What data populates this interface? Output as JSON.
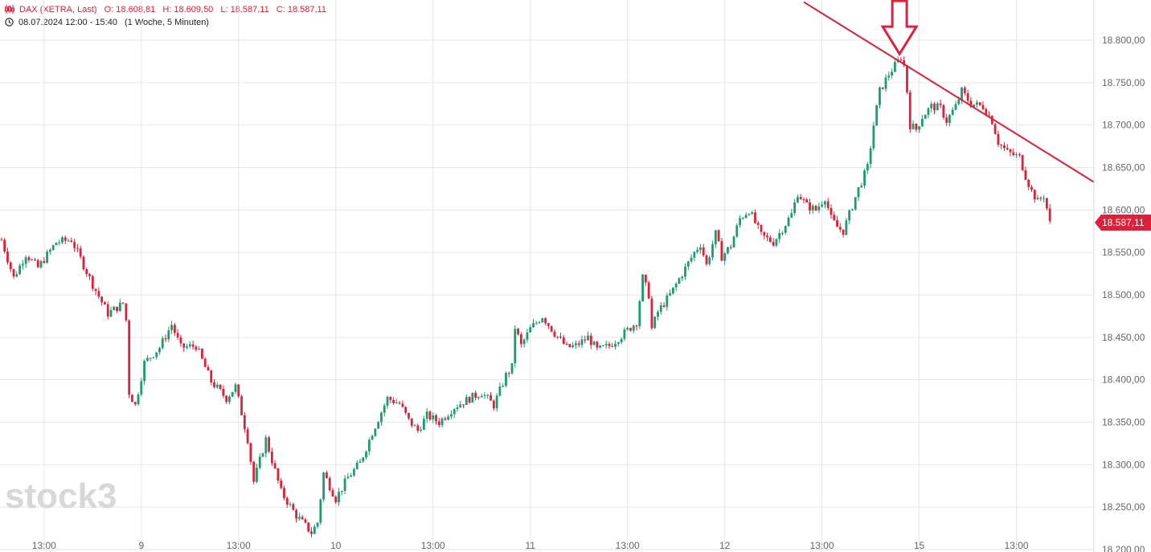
{
  "header": {
    "instrument": "DAX (XETRA, Last)",
    "open": "O: 18.608,81",
    "high": "H: 18.609,50",
    "low": "L: 18.587,11",
    "close": "C: 18.587,11",
    "range": "08.07.2024 12:00 - 15:40",
    "period": "(1 Woche, 5 Minuten)"
  },
  "watermark": "stock3",
  "last_price_label": "18.587,11",
  "colors": {
    "up": "#1a9c6e",
    "down": "#e0203a",
    "grid": "#e6e6e6",
    "trend": "#e0203a"
  },
  "chart_data": {
    "type": "candlestick",
    "ylim": [
      18200,
      18850
    ],
    "y_ticks": [
      "18.200,00",
      "18.250,00",
      "18.300,00",
      "18.350,00",
      "18.400,00",
      "18.450,00",
      "18.500,00",
      "18.550,00",
      "18.600,00",
      "18.650,00",
      "18.700,00",
      "18.750,00",
      "18.800,00"
    ],
    "y_tick_values": [
      18200,
      18250,
      18300,
      18350,
      18400,
      18450,
      18500,
      18550,
      18600,
      18650,
      18700,
      18750,
      18800
    ],
    "x_ticks": [
      "13:00",
      "9",
      "13:00",
      "10",
      "13:00",
      "11",
      "13:00",
      "12",
      "13:00",
      "15",
      "13:00"
    ],
    "x_tick_index": [
      14,
      46,
      78,
      110,
      142,
      174,
      206,
      238,
      270,
      302,
      334
    ],
    "bars_total": 360,
    "series": [
      {
        "values": [
          {
            "i": 0,
            "v": 18565
          },
          {
            "i": 4,
            "v": 18520
          },
          {
            "i": 8,
            "v": 18548
          },
          {
            "i": 12,
            "v": 18532
          },
          {
            "i": 18,
            "v": 18562
          },
          {
            "i": 23,
            "v": 18565
          },
          {
            "i": 27,
            "v": 18535
          },
          {
            "i": 30,
            "v": 18512
          },
          {
            "i": 35,
            "v": 18478
          },
          {
            "i": 40,
            "v": 18490
          },
          {
            "i": 41,
            "v": 18470
          },
          {
            "i": 42,
            "v": 18385
          },
          {
            "i": 44,
            "v": 18370
          },
          {
            "i": 47,
            "v": 18420
          },
          {
            "i": 52,
            "v": 18438
          },
          {
            "i": 56,
            "v": 18465
          },
          {
            "i": 59,
            "v": 18438
          },
          {
            "i": 64,
            "v": 18440
          },
          {
            "i": 69,
            "v": 18398
          },
          {
            "i": 74,
            "v": 18378
          },
          {
            "i": 77,
            "v": 18392
          },
          {
            "i": 81,
            "v": 18330
          },
          {
            "i": 83,
            "v": 18280
          },
          {
            "i": 87,
            "v": 18330
          },
          {
            "i": 92,
            "v": 18268
          },
          {
            "i": 97,
            "v": 18240
          },
          {
            "i": 102,
            "v": 18220
          },
          {
            "i": 104,
            "v": 18232
          },
          {
            "i": 106,
            "v": 18290
          },
          {
            "i": 110,
            "v": 18260
          },
          {
            "i": 114,
            "v": 18285
          },
          {
            "i": 118,
            "v": 18302
          },
          {
            "i": 122,
            "v": 18338
          },
          {
            "i": 127,
            "v": 18378
          },
          {
            "i": 131,
            "v": 18372
          },
          {
            "i": 134,
            "v": 18352
          },
          {
            "i": 137,
            "v": 18340
          },
          {
            "i": 140,
            "v": 18358
          },
          {
            "i": 144,
            "v": 18350
          },
          {
            "i": 149,
            "v": 18368
          },
          {
            "i": 154,
            "v": 18378
          },
          {
            "i": 158,
            "v": 18385
          },
          {
            "i": 162,
            "v": 18370
          },
          {
            "i": 166,
            "v": 18405
          },
          {
            "i": 168,
            "v": 18415
          },
          {
            "i": 169,
            "v": 18462
          },
          {
            "i": 171,
            "v": 18440
          },
          {
            "i": 174,
            "v": 18460
          },
          {
            "i": 178,
            "v": 18475
          },
          {
            "i": 182,
            "v": 18455
          },
          {
            "i": 186,
            "v": 18438
          },
          {
            "i": 189,
            "v": 18440
          },
          {
            "i": 193,
            "v": 18450
          },
          {
            "i": 196,
            "v": 18435
          },
          {
            "i": 200,
            "v": 18440
          },
          {
            "i": 204,
            "v": 18452
          },
          {
            "i": 209,
            "v": 18468
          },
          {
            "i": 211,
            "v": 18520
          },
          {
            "i": 213,
            "v": 18500
          },
          {
            "i": 214,
            "v": 18460
          },
          {
            "i": 216,
            "v": 18480
          },
          {
            "i": 220,
            "v": 18500
          },
          {
            "i": 224,
            "v": 18525
          },
          {
            "i": 228,
            "v": 18550
          },
          {
            "i": 230,
            "v": 18560
          },
          {
            "i": 232,
            "v": 18535
          },
          {
            "i": 235,
            "v": 18572
          },
          {
            "i": 237,
            "v": 18545
          },
          {
            "i": 240,
            "v": 18558
          },
          {
            "i": 243,
            "v": 18590
          },
          {
            "i": 246,
            "v": 18600
          },
          {
            "i": 250,
            "v": 18570
          },
          {
            "i": 254,
            "v": 18562
          },
          {
            "i": 257,
            "v": 18578
          },
          {
            "i": 260,
            "v": 18595
          },
          {
            "i": 262,
            "v": 18620
          },
          {
            "i": 265,
            "v": 18605
          },
          {
            "i": 268,
            "v": 18600
          },
          {
            "i": 271,
            "v": 18615
          },
          {
            "i": 273,
            "v": 18590
          },
          {
            "i": 275,
            "v": 18580
          },
          {
            "i": 277,
            "v": 18575
          },
          {
            "i": 280,
            "v": 18605
          },
          {
            "i": 282,
            "v": 18625
          },
          {
            "i": 285,
            "v": 18650
          },
          {
            "i": 287,
            "v": 18700
          },
          {
            "i": 289,
            "v": 18740
          },
          {
            "i": 292,
            "v": 18760
          },
          {
            "i": 295,
            "v": 18775
          },
          {
            "i": 296,
            "v": 18780
          },
          {
            "i": 297,
            "v": 18770
          },
          {
            "i": 298,
            "v": 18740
          },
          {
            "i": 299,
            "v": 18700
          },
          {
            "i": 301,
            "v": 18695
          },
          {
            "i": 303,
            "v": 18710
          },
          {
            "i": 306,
            "v": 18722
          },
          {
            "i": 309,
            "v": 18720
          },
          {
            "i": 311,
            "v": 18705
          },
          {
            "i": 314,
            "v": 18722
          },
          {
            "i": 316,
            "v": 18740
          },
          {
            "i": 319,
            "v": 18725
          },
          {
            "i": 323,
            "v": 18722
          },
          {
            "i": 326,
            "v": 18705
          },
          {
            "i": 328,
            "v": 18680
          },
          {
            "i": 331,
            "v": 18668
          },
          {
            "i": 335,
            "v": 18662
          },
          {
            "i": 337,
            "v": 18640
          },
          {
            "i": 339,
            "v": 18622
          },
          {
            "i": 341,
            "v": 18610
          },
          {
            "i": 343,
            "v": 18617
          },
          {
            "i": 345,
            "v": 18587
          }
        ]
      }
    ],
    "annotations": [
      {
        "type": "trendline",
        "from": {
          "i": 264,
          "v": 18845
        },
        "to": {
          "i": 360,
          "v": 18633
        }
      },
      {
        "type": "arrow-down",
        "at": {
          "i": 295,
          "v": 18780
        }
      }
    ]
  }
}
